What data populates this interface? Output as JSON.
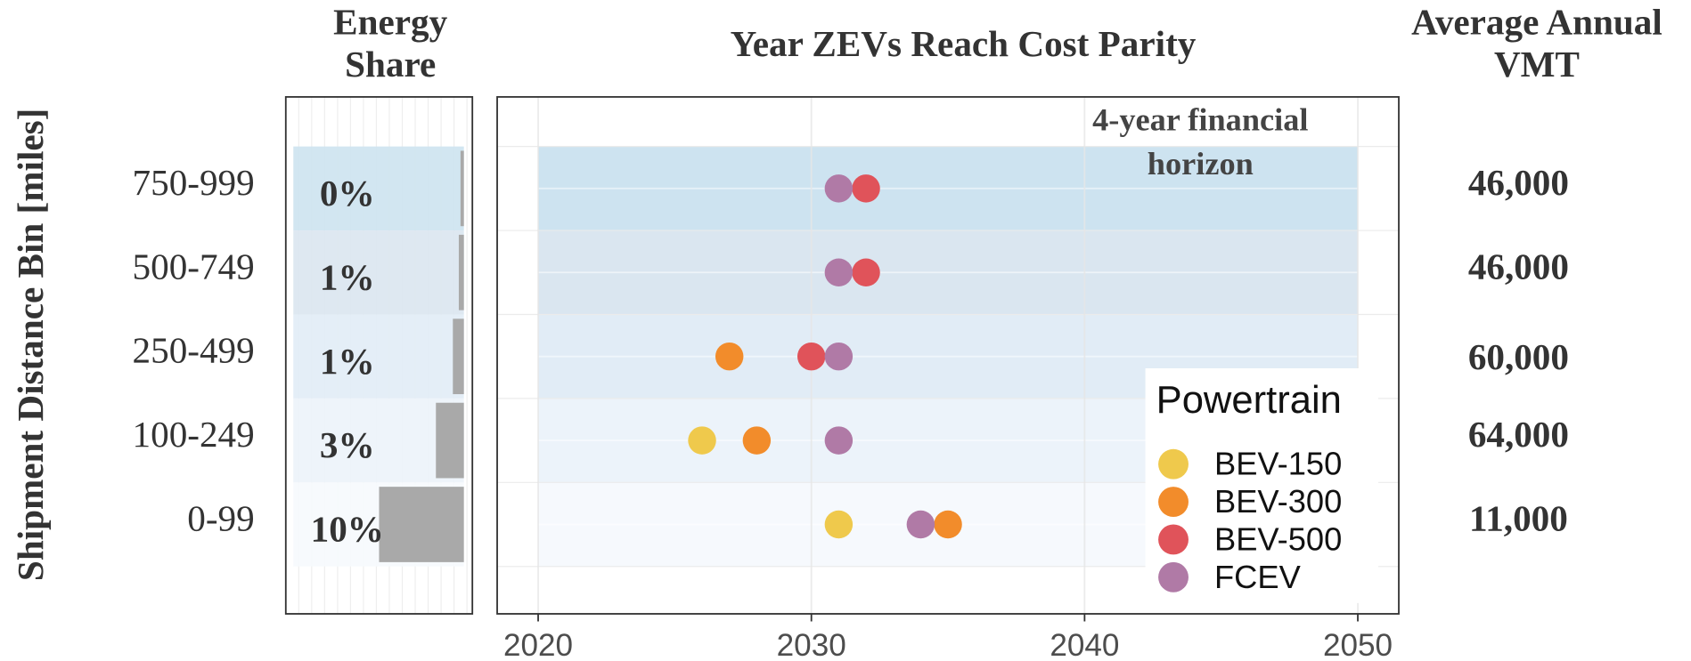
{
  "chart_data": [
    {
      "type": "bar",
      "orientation": "horizontal",
      "title": "Energy Share",
      "y_label": "Shipment Distance Bin [miles]",
      "categories": [
        "750-999",
        "500-749",
        "250-499",
        "100-249",
        "0-99"
      ],
      "values": [
        0.4,
        0.6,
        1.3,
        3.3,
        10
      ],
      "value_labels": [
        "0%",
        "1%",
        "1%",
        "3%",
        "10%"
      ],
      "color": "#a9a9a9",
      "xlim": [
        21,
        -1
      ]
    },
    {
      "type": "scatter",
      "title": "Year ZEVs Reach Cost Parity",
      "categories": [
        "750-999",
        "500-749",
        "250-499",
        "100-249",
        "0-99"
      ],
      "series": [
        {
          "name": "BEV-150",
          "color": "#efc94c",
          "values": [
            null,
            null,
            null,
            2026,
            2031
          ]
        },
        {
          "name": "BEV-300",
          "color": "#f28c2b",
          "values": [
            null,
            null,
            2027,
            2028,
            2035
          ]
        },
        {
          "name": "BEV-500",
          "color": "#e0535a",
          "values": [
            2032,
            2032,
            2030,
            null,
            null
          ]
        },
        {
          "name": "FCEV",
          "color": "#b07aa6",
          "values": [
            2031,
            2031,
            2031,
            2031,
            2034
          ]
        }
      ],
      "xlim": [
        2018.5,
        2051.5
      ],
      "xticks": [
        2020,
        2030,
        2040,
        2050
      ],
      "grid": true,
      "legend_title": "Powertrain",
      "legend": "bottom-right",
      "annotation": "4-year financial horizon"
    },
    {
      "type": "table",
      "title": "Average Annual VMT",
      "values": [
        "46,000",
        "46,000",
        "60,000",
        "64,000",
        "11,000"
      ]
    }
  ]
}
